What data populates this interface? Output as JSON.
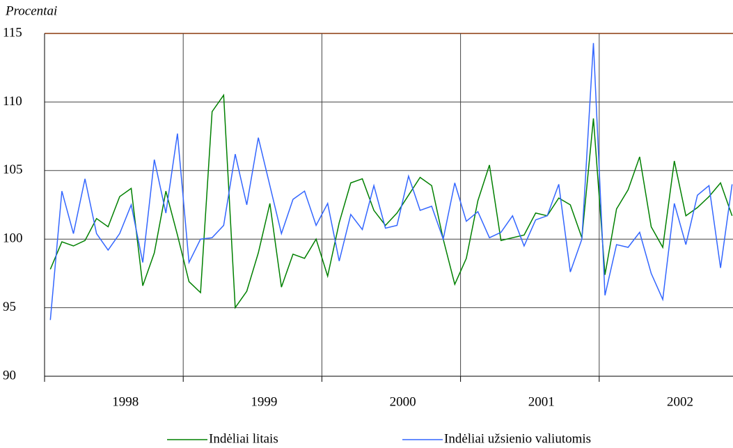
{
  "chart_data": {
    "type": "line",
    "y_label": "Procentai",
    "categories": [
      null,
      null,
      null,
      null,
      null,
      null,
      null,
      "1998",
      null,
      null,
      null,
      null,
      null,
      null,
      null,
      null,
      null,
      null,
      null,
      "1999",
      null,
      null,
      null,
      null,
      null,
      null,
      null,
      null,
      null,
      null,
      null,
      "2000",
      null,
      null,
      null,
      null,
      null,
      null,
      null,
      null,
      null,
      null,
      null,
      "2001",
      null,
      null,
      null,
      null,
      null,
      null,
      null,
      null,
      null,
      null,
      null,
      "2002",
      null,
      null,
      null,
      null
    ],
    "series": [
      {
        "name": "Indėliai litais",
        "color": "#008000",
        "values": [
          97.8,
          99.8,
          99.5,
          99.9,
          101.5,
          100.9,
          103.1,
          103.7,
          96.6,
          99.0,
          103.5,
          100.3,
          96.9,
          96.1,
          109.3,
          110.5,
          95.0,
          96.2,
          99.0,
          102.6,
          96.5,
          98.9,
          98.6,
          100.0,
          97.3,
          101.2,
          104.1,
          104.4,
          102.1,
          101.0,
          101.9,
          103.2,
          104.5,
          103.9,
          100.0,
          96.7,
          98.6,
          102.8,
          105.4,
          99.9,
          100.1,
          100.3,
          101.9,
          101.7,
          103.0,
          102.5,
          100.1,
          108.8,
          97.4,
          102.2,
          103.6,
          106.0,
          100.9,
          99.4,
          105.7,
          101.7,
          102.3,
          103.1,
          104.1,
          101.7
        ]
      },
      {
        "name": "Indėliai užsienio valiutomis",
        "color": "#3366ff",
        "values": [
          94.1,
          103.5,
          100.4,
          104.4,
          100.4,
          99.2,
          100.4,
          102.5,
          98.3,
          105.8,
          101.9,
          107.7,
          98.3,
          100.0,
          100.1,
          101.0,
          106.2,
          102.5,
          107.4,
          103.9,
          100.4,
          102.9,
          103.5,
          101.0,
          102.6,
          98.4,
          101.8,
          100.7,
          103.9,
          100.8,
          101.0,
          104.6,
          102.1,
          102.4,
          100.0,
          104.1,
          101.3,
          102.0,
          100.1,
          100.5,
          101.7,
          99.5,
          101.4,
          101.7,
          104.0,
          97.6,
          100.0,
          114.3,
          95.9,
          99.6,
          99.4,
          100.5,
          97.5,
          95.6,
          102.6,
          99.6,
          103.2,
          103.9,
          97.9,
          104.0
        ]
      }
    ],
    "ylim": [
      90,
      115
    ],
    "yticks": [
      90,
      95,
      100,
      105,
      110,
      115
    ],
    "grid": true,
    "legend": "bottom"
  }
}
